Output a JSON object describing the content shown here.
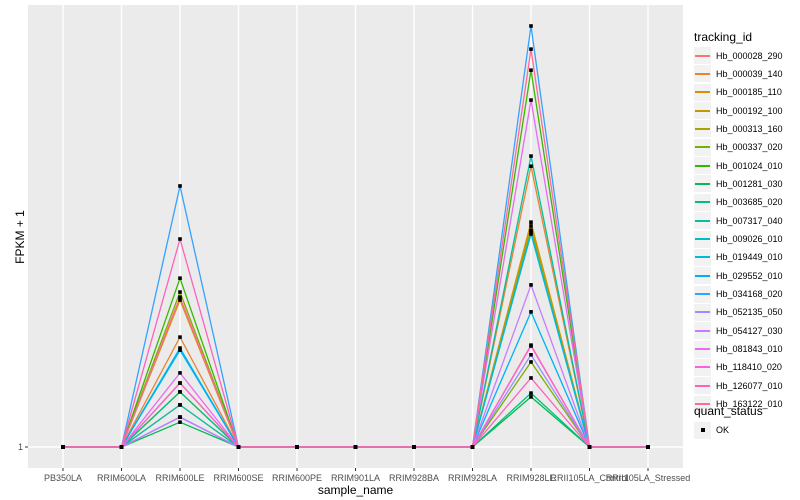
{
  "chart_data": {
    "type": "line",
    "title": "",
    "xlabel": "sample_name",
    "ylabel": "FPKM + 1",
    "y_axis_ticks": [
      "1"
    ],
    "y_scale_note": "Only the tick '1' is labeled on the y-axis; series values are recorded as relative heights (0 = baseline value 1, 1 = tallest peak).",
    "panel_bg": "#EBEBEB",
    "grid_color": "#FFFFFF",
    "point_color": "#000000",
    "categories": [
      "PB350LA",
      "RRIM600LA",
      "RRIM600LE",
      "RRIM600SE",
      "RRIM600PE",
      "RRIM901LA",
      "RRIM928BA",
      "RRIM928LA",
      "RRIM928LE",
      "RRII105LA_Control",
      "RRII105LA_Stressed"
    ],
    "baseline_value": 1,
    "baseline_note": "All series sit at FPKM+1 = 1 for every sample except RRIM600LE and RRIM928LE, where each series peaks.",
    "legend": {
      "title": "tracking_id",
      "position": "right"
    },
    "quant_legend": {
      "title": "quant_status",
      "items": [
        {
          "label": "OK",
          "marker": "black-square"
        }
      ]
    },
    "series": [
      {
        "name": "Hb_000028_290",
        "color": "#F8766D",
        "values_relative": [
          0,
          0,
          0.1,
          0,
          0,
          0,
          0,
          0,
          0.242,
          0,
          0
        ]
      },
      {
        "name": "Hb_000039_140",
        "color": "#EA8331",
        "values_relative": [
          0,
          0,
          0.261,
          0,
          0,
          0,
          0,
          0,
          0.667,
          0,
          0
        ]
      },
      {
        "name": "Hb_000185_110",
        "color": "#D89000",
        "values_relative": [
          0,
          0,
          0.349,
          0,
          0,
          0,
          0,
          0,
          0.534,
          0,
          0
        ]
      },
      {
        "name": "Hb_000192_100",
        "color": "#C09B00",
        "values_relative": [
          0,
          0,
          0.152,
          0,
          0,
          0,
          0,
          0,
          0.525,
          0,
          0
        ]
      },
      {
        "name": "Hb_000313_160",
        "color": "#A3A500",
        "values_relative": [
          0,
          0,
          0.131,
          0,
          0,
          0,
          0,
          0,
          0.515,
          0,
          0
        ]
      },
      {
        "name": "Hb_000337_020",
        "color": "#7CAE00",
        "values_relative": [
          0,
          0,
          0.368,
          0,
          0,
          0,
          0,
          0,
          0.202,
          0,
          0
        ]
      },
      {
        "name": "Hb_001024_010",
        "color": "#39B600",
        "values_relative": [
          0,
          0,
          0.401,
          0,
          0,
          0,
          0,
          0,
          0.895,
          0,
          0
        ]
      },
      {
        "name": "Hb_001281_030",
        "color": "#00BB4E",
        "values_relative": [
          0,
          0,
          0.059,
          0,
          0,
          0,
          0,
          0,
          0.119,
          0,
          0
        ]
      },
      {
        "name": "Hb_003685_020",
        "color": "#00BF7D",
        "values_relative": [
          0,
          0,
          0.131,
          0,
          0,
          0,
          0,
          0,
          0.128,
          0,
          0
        ]
      },
      {
        "name": "Hb_007317_040",
        "color": "#00C1A3",
        "values_relative": [
          0,
          0,
          0.1,
          0,
          0,
          0,
          0,
          0,
          0.691,
          0,
          0
        ]
      },
      {
        "name": "Hb_009026_010",
        "color": "#00BFC4",
        "values_relative": [
          0,
          0,
          0.071,
          0,
          0,
          0,
          0,
          0,
          0.51,
          0,
          0
        ]
      },
      {
        "name": "Hb_019449_010",
        "color": "#00BAE0",
        "values_relative": [
          0,
          0,
          0.235,
          0,
          0,
          0,
          0,
          0,
          0.506,
          0,
          0
        ]
      },
      {
        "name": "Hb_029552_010",
        "color": "#00B0F6",
        "values_relative": [
          0,
          0,
          0.23,
          0,
          0,
          0,
          0,
          0,
          0.321,
          0,
          0
        ]
      },
      {
        "name": "Hb_034168_020",
        "color": "#35A2FF",
        "values_relative": [
          0,
          0,
          0.62,
          0,
          0,
          0,
          0,
          0,
          1.0,
          0,
          0
        ]
      },
      {
        "name": "Hb_052135_050",
        "color": "#9590FF",
        "values_relative": [
          0,
          0,
          0.071,
          0,
          0,
          0,
          0,
          0,
          0.219,
          0,
          0
        ]
      },
      {
        "name": "Hb_054127_030",
        "color": "#C77CFF",
        "values_relative": [
          0,
          0,
          0.071,
          0,
          0,
          0,
          0,
          0,
          0.385,
          0,
          0
        ]
      },
      {
        "name": "Hb_081843_010",
        "color": "#E76BF3",
        "values_relative": [
          0,
          0,
          0.176,
          0,
          0,
          0,
          0,
          0,
          0.824,
          0,
          0
        ]
      },
      {
        "name": "Hb_118410_020",
        "color": "#FA62DB",
        "values_relative": [
          0,
          0,
          0.152,
          0,
          0,
          0,
          0,
          0,
          0.24,
          0,
          0
        ]
      },
      {
        "name": "Hb_126077_010",
        "color": "#FF62BC",
        "values_relative": [
          0,
          0,
          0.494,
          0,
          0,
          0,
          0,
          0,
          0.164,
          0,
          0
        ]
      },
      {
        "name": "Hb_163122_010",
        "color": "#FF6A98",
        "values_relative": [
          0,
          0,
          0.356,
          0,
          0,
          0,
          0,
          0,
          0.945,
          0,
          0
        ]
      }
    ]
  }
}
